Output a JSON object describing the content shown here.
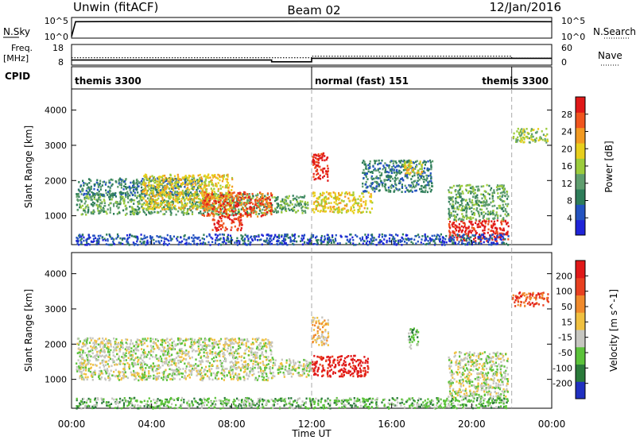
{
  "header": {
    "station": "Unwin (fitACF)",
    "beam": "Beam 02",
    "date": "12/Jan/2016"
  },
  "nsky_panel": {
    "left_label": "N.Sky",
    "right_label": "N.Search",
    "left_ticks": [
      "10^5",
      "10^0"
    ],
    "right_ticks": [
      "10^5",
      "10^0"
    ]
  },
  "freq_panel": {
    "left_label_1": "Freq.",
    "left_label_2": "[MHz]",
    "right_label": "Nave",
    "left_ticks": [
      "18",
      "8"
    ],
    "right_ticks": [
      "60",
      "0"
    ]
  },
  "cpid_panel": {
    "label": "CPID",
    "modes": [
      {
        "name": "themis 3300",
        "start": 0,
        "end": 12
      },
      {
        "name": "normal (fast) 151",
        "start": 12,
        "end": 22
      },
      {
        "name": "themis 3300",
        "start": 22,
        "end": 24
      }
    ]
  },
  "x_axis": {
    "label": "Time UT",
    "ticks": [
      "00:00",
      "04:00",
      "08:00",
      "12:00",
      "16:00",
      "20:00",
      "00:00"
    ]
  },
  "power_panel": {
    "ylabel": "Slant Range [km]",
    "yticks": [
      "1000",
      "2000",
      "3000",
      "4000"
    ],
    "colorbar_label": "Power [dB]",
    "colorbar_ticks": [
      "4",
      "8",
      "12",
      "16",
      "20",
      "24",
      "28"
    ]
  },
  "velocity_panel": {
    "ylabel": "Slant Range [km]",
    "yticks": [
      "1000",
      "2000",
      "3000",
      "4000"
    ],
    "colorbar_label": "Velocity [m s^-1]",
    "colorbar_ticks": [
      "200",
      "100",
      "50",
      "15",
      "-15",
      "-50",
      "-100",
      "-200"
    ]
  },
  "chart_data": {
    "type": "heatmap",
    "title": "Beam 02",
    "xlabel": "Time UT",
    "ylabel": "Slant Range [km]",
    "xlim": [
      0,
      24
    ],
    "ylim": [
      180,
      4600
    ],
    "power_colorscale": [
      "#1f24d8",
      "#2453c0",
      "#2e7d5a",
      "#5f9e6e",
      "#9ccc3c",
      "#e8cf1d",
      "#f29a22",
      "#f0551e",
      "#e01818"
    ],
    "velocity_colorscale": [
      "#2030c0",
      "#2a7a3a",
      "#5bc23a",
      "#c6c6c0",
      "#f0c040",
      "#f08a2c",
      "#e84020",
      "#e01818"
    ],
    "power_regions": [
      {
        "t0": 0.2,
        "t1": 10.0,
        "r0": 1050,
        "r1": 1650,
        "level": 3
      },
      {
        "t0": 0.3,
        "t1": 6.5,
        "r0": 1600,
        "r1": 2100,
        "level": 2
      },
      {
        "t0": 3.5,
        "t1": 8.0,
        "r0": 1200,
        "r1": 2200,
        "level": 5
      },
      {
        "t0": 6.5,
        "t1": 10.0,
        "r0": 1000,
        "r1": 1700,
        "level": 7
      },
      {
        "t0": 7.0,
        "t1": 8.5,
        "r0": 600,
        "r1": 1000,
        "level": 8
      },
      {
        "t0": 10.0,
        "t1": 11.8,
        "r0": 1100,
        "r1": 1600,
        "level": 3
      },
      {
        "t0": 12.0,
        "t1": 12.8,
        "r0": 2000,
        "r1": 2800,
        "level": 8
      },
      {
        "t0": 12.0,
        "t1": 15.0,
        "r0": 1100,
        "r1": 1700,
        "level": 5
      },
      {
        "t0": 14.5,
        "t1": 18.0,
        "r0": 1700,
        "r1": 2600,
        "level": 2
      },
      {
        "t0": 16.5,
        "t1": 17.5,
        "r0": 2200,
        "r1": 2600,
        "level": 5
      },
      {
        "t0": 18.8,
        "t1": 21.8,
        "r0": 300,
        "r1": 900,
        "level": 8
      },
      {
        "t0": 18.8,
        "t1": 21.8,
        "r0": 900,
        "r1": 1900,
        "level": 3
      },
      {
        "t0": 22.0,
        "t1": 23.8,
        "r0": 3100,
        "r1": 3500,
        "level": 4
      },
      {
        "t0": 0.2,
        "t1": 21.8,
        "r0": 200,
        "r1": 500,
        "level": 1
      }
    ],
    "velocity_regions": [
      {
        "t0": 0.2,
        "t1": 10.0,
        "r0": 1000,
        "r1": 2200,
        "level": 3
      },
      {
        "t0": 10.0,
        "t1": 12.0,
        "r0": 1100,
        "r1": 1600,
        "level": 3
      },
      {
        "t0": 12.0,
        "t1": 14.8,
        "r0": 1100,
        "r1": 1700,
        "level": 7
      },
      {
        "t0": 12.0,
        "t1": 12.8,
        "r0": 2000,
        "r1": 2800,
        "level": 4
      },
      {
        "t0": 16.8,
        "t1": 17.3,
        "r0": 1900,
        "r1": 2500,
        "level": 2
      },
      {
        "t0": 18.8,
        "t1": 21.8,
        "r0": 500,
        "r1": 1800,
        "level": 3
      },
      {
        "t0": 22.0,
        "t1": 23.8,
        "r0": 3100,
        "r1": 3500,
        "level": 6
      },
      {
        "t0": 0.2,
        "t1": 21.8,
        "r0": 200,
        "r1": 500,
        "level": 2
      }
    ],
    "nsky_trace": [
      [
        0,
        0.0
      ],
      [
        0.2,
        0.85
      ],
      [
        12,
        0.88
      ],
      [
        24,
        0.85
      ]
    ],
    "freq_trace": [
      [
        0,
        10
      ],
      [
        10,
        10
      ],
      [
        10,
        9
      ],
      [
        12,
        9
      ],
      [
        12,
        11
      ],
      [
        24,
        11
      ]
    ],
    "nave_trace": [
      [
        0,
        20
      ],
      [
        12,
        20
      ],
      [
        12,
        25
      ],
      [
        22,
        25
      ],
      [
        22,
        18
      ],
      [
        24,
        18
      ]
    ]
  }
}
